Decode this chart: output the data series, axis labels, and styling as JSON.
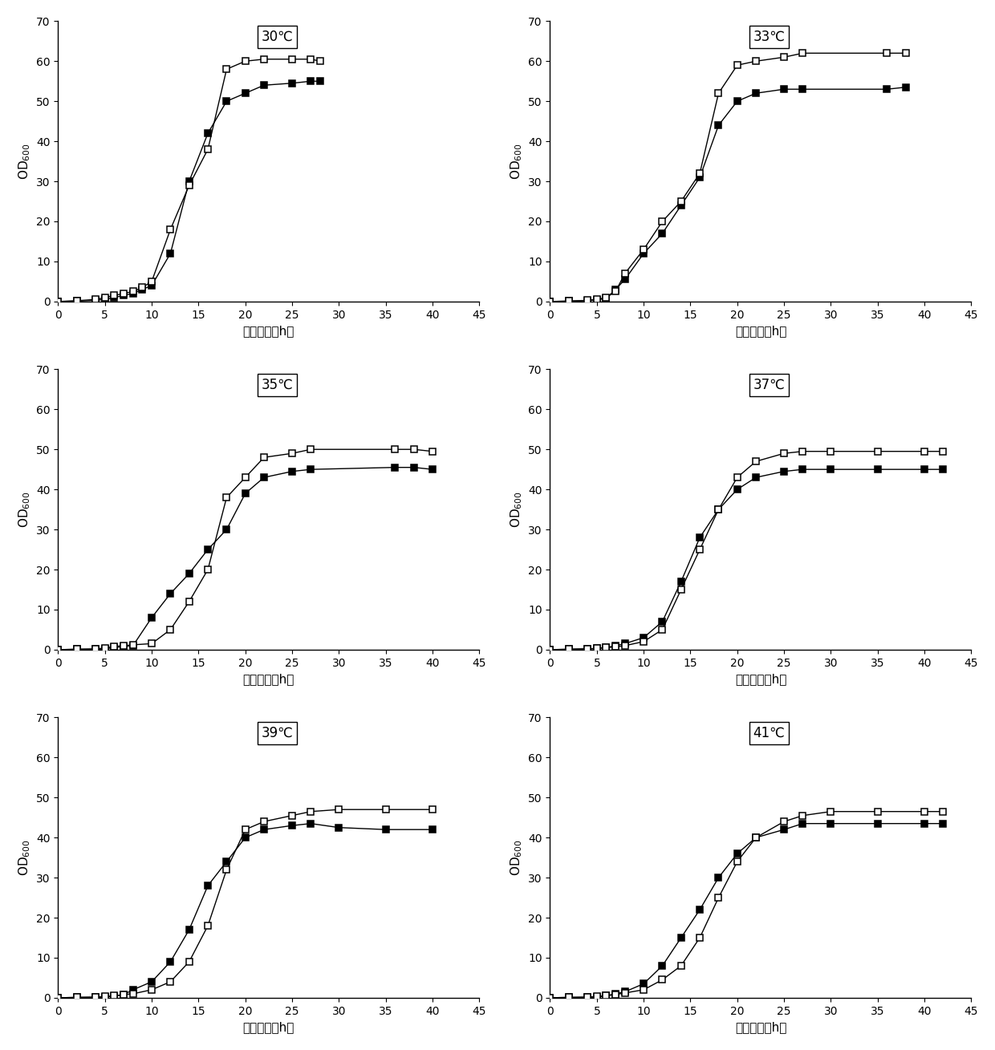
{
  "subplots": [
    {
      "title": "30℃",
      "open_x": [
        0,
        2,
        4,
        5,
        6,
        7,
        8,
        9,
        10,
        12,
        14,
        16,
        18,
        20,
        22,
        25,
        27,
        28
      ],
      "open_y": [
        0,
        0.2,
        0.5,
        1.0,
        1.5,
        2.0,
        2.5,
        3.5,
        5.0,
        18,
        29,
        38,
        58,
        60,
        60.5,
        60.5,
        60.5,
        60
      ],
      "filled_x": [
        0,
        2,
        4,
        5,
        6,
        7,
        8,
        9,
        10,
        12,
        14,
        16,
        18,
        20,
        22,
        25,
        27,
        28
      ],
      "filled_y": [
        0,
        0.1,
        0.3,
        0.5,
        1.0,
        1.5,
        2.0,
        3.0,
        4.0,
        12,
        30,
        42,
        50,
        52,
        54,
        54.5,
        55,
        55
      ]
    },
    {
      "title": "33℃",
      "open_x": [
        0,
        2,
        4,
        5,
        6,
        7,
        8,
        10,
        12,
        14,
        16,
        18,
        20,
        22,
        25,
        27,
        36,
        38
      ],
      "open_y": [
        0,
        0.1,
        0.3,
        0.5,
        1.0,
        2.5,
        7.0,
        13,
        20,
        25,
        32,
        52,
        59,
        60,
        61,
        62,
        62,
        62
      ],
      "filled_x": [
        0,
        2,
        4,
        5,
        6,
        7,
        8,
        10,
        12,
        14,
        16,
        18,
        20,
        22,
        25,
        27,
        36,
        38
      ],
      "filled_y": [
        0,
        0.1,
        0.2,
        0.4,
        0.8,
        3.0,
        5.5,
        12,
        17,
        24,
        31,
        44,
        50,
        52,
        53,
        53,
        53,
        53.5
      ]
    },
    {
      "title": "35℃",
      "open_x": [
        0,
        2,
        4,
        5,
        6,
        7,
        8,
        10,
        12,
        14,
        16,
        18,
        20,
        22,
        25,
        27,
        36,
        38,
        40
      ],
      "open_y": [
        0,
        0.1,
        0.2,
        0.4,
        0.8,
        1.0,
        1.2,
        1.5,
        5.0,
        12,
        20,
        38,
        43,
        48,
        49,
        50,
        50,
        50,
        49.5
      ],
      "filled_x": [
        0,
        2,
        4,
        5,
        6,
        7,
        8,
        10,
        12,
        14,
        16,
        18,
        20,
        22,
        25,
        27,
        36,
        38,
        40
      ],
      "filled_y": [
        0,
        0.1,
        0.1,
        0.2,
        0.5,
        0.8,
        1.0,
        8.0,
        14,
        19,
        25,
        30,
        39,
        43,
        44.5,
        45,
        45.5,
        45.5,
        45
      ]
    },
    {
      "title": "37℃",
      "open_x": [
        0,
        2,
        4,
        5,
        6,
        7,
        8,
        10,
        12,
        14,
        16,
        18,
        20,
        22,
        25,
        27,
        30,
        35,
        40,
        42
      ],
      "open_y": [
        0,
        0.1,
        0.2,
        0.3,
        0.5,
        0.7,
        1.0,
        2.0,
        5.0,
        15,
        25,
        35,
        43,
        47,
        49,
        49.5,
        49.5,
        49.5,
        49.5,
        49.5
      ],
      "filled_x": [
        0,
        2,
        4,
        5,
        6,
        7,
        8,
        10,
        12,
        14,
        16,
        18,
        20,
        22,
        25,
        27,
        30,
        35,
        40,
        42
      ],
      "filled_y": [
        0,
        0.1,
        0.2,
        0.3,
        0.5,
        1.0,
        1.5,
        3.0,
        7.0,
        17,
        28,
        35,
        40,
        43,
        44.5,
        45,
        45,
        45,
        45,
        45
      ]
    },
    {
      "title": "39℃",
      "open_x": [
        0,
        2,
        4,
        5,
        6,
        7,
        8,
        10,
        12,
        14,
        16,
        18,
        20,
        22,
        25,
        27,
        30,
        35,
        40
      ],
      "open_y": [
        0,
        0.1,
        0.2,
        0.3,
        0.5,
        0.8,
        1.0,
        2.0,
        4.0,
        9.0,
        18,
        32,
        42,
        44,
        45.5,
        46.5,
        47,
        47,
        47
      ],
      "filled_x": [
        0,
        2,
        4,
        5,
        6,
        7,
        8,
        10,
        12,
        14,
        16,
        18,
        20,
        22,
        25,
        27,
        30,
        35,
        40
      ],
      "filled_y": [
        0,
        0.1,
        0.1,
        0.2,
        0.4,
        0.8,
        2.0,
        4.0,
        9.0,
        17,
        28,
        34,
        40,
        42,
        43,
        43.5,
        42.5,
        42,
        42
      ]
    },
    {
      "title": "41℃",
      "open_x": [
        0,
        2,
        4,
        5,
        6,
        7,
        8,
        10,
        12,
        14,
        16,
        18,
        20,
        22,
        25,
        27,
        30,
        35,
        40,
        42
      ],
      "open_y": [
        0,
        0.1,
        0.2,
        0.3,
        0.5,
        0.8,
        1.2,
        2.0,
        4.5,
        8.0,
        15,
        25,
        34,
        40,
        44,
        45.5,
        46.5,
        46.5,
        46.5,
        46.5
      ],
      "filled_x": [
        0,
        2,
        4,
        5,
        6,
        7,
        8,
        10,
        12,
        14,
        16,
        18,
        20,
        22,
        25,
        27,
        30,
        35,
        40,
        42
      ],
      "filled_y": [
        0,
        0.1,
        0.1,
        0.2,
        0.5,
        1.0,
        1.5,
        3.5,
        8.0,
        15,
        22,
        30,
        36,
        40,
        42,
        43.5,
        43.5,
        43.5,
        43.5,
        43.5
      ]
    }
  ],
  "xlabel": "培养时间（h）",
  "ylim": [
    0,
    70
  ],
  "xlim": [
    0,
    45
  ],
  "yticks": [
    0,
    10,
    20,
    30,
    40,
    50,
    60,
    70
  ],
  "xticks": [
    0,
    5,
    10,
    15,
    20,
    25,
    30,
    35,
    40,
    45
  ]
}
